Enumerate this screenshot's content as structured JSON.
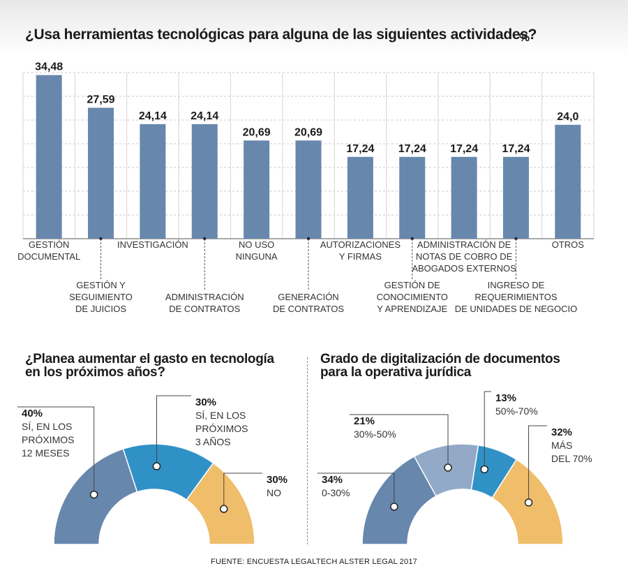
{
  "header": {
    "title": "¿Usa herramientas tecnológicas para alguna de las siguientes actividades?",
    "unit": "%"
  },
  "chart_data": [
    {
      "type": "bar",
      "title": "¿Usa herramientas tecnológicas para alguna de las siguientes actividades?",
      "unit": "%",
      "categories": [
        [
          "GESTIÓN",
          "DOCUMENTAL"
        ],
        [
          "GESTIÓN Y",
          "SEGUIMIENTO",
          "DE JUICIOS"
        ],
        [
          "INVESTIGACIÓN"
        ],
        [
          "ADMINISTRACIÓN",
          "DE CONTRATOS"
        ],
        [
          "NO USO",
          "NINGUNA"
        ],
        [
          "GENERACIÓN",
          "DE CONTRATOS"
        ],
        [
          "AUTORIZACIONES",
          "Y FIRMAS"
        ],
        [
          "GESTIÓN DE",
          "CONOCIMIENTO",
          "Y APRENDIZAJE"
        ],
        [
          "ADMINISTRACIÓN DE",
          "NOTAS DE COBRO DE",
          "ABOGADOS EXTERNOS"
        ],
        [
          "INGRESO DE",
          "REQUERIMIENTOS",
          "DE UNIDADES DE NEGOCIO"
        ],
        [
          "OTROS"
        ]
      ],
      "values": [
        34.48,
        27.59,
        24.14,
        24.14,
        20.69,
        20.69,
        17.24,
        17.24,
        17.24,
        17.24,
        24.0
      ],
      "value_labels": [
        "34,48",
        "27,59",
        "24,14",
        "24,14",
        "20,69",
        "20,69",
        "17,24",
        "17,24",
        "17,24",
        "17,24",
        "24,0"
      ],
      "ylim": [
        0,
        35
      ],
      "grid": true,
      "color": "#6887ad"
    },
    {
      "type": "pie",
      "title": "¿Planea aumentar el gasto en tecnología en los próximos años?",
      "title_lines": [
        "¿Planea aumentar el gasto en tecnología",
        "en los próximos años?"
      ],
      "slices": [
        {
          "value": 40,
          "pct_label": "40%",
          "label_lines": [
            "SÍ, EN LOS",
            "PRÓXIMOS",
            "12 MESES"
          ],
          "color": "#6887ad"
        },
        {
          "value": 30,
          "pct_label": "30%",
          "label_lines": [
            "SÍ, EN LOS",
            "PRÓXIMOS",
            "3 AÑOS"
          ],
          "color": "#2f91c6"
        },
        {
          "value": 30,
          "pct_label": "30%",
          "label_lines": [
            "NO"
          ],
          "color": "#f0bd6a"
        }
      ]
    },
    {
      "type": "pie",
      "title": "Grado de digitalización de documentos para la operativa jurídica",
      "title_lines": [
        "Grado de digitalización de documentos",
        "para la operativa jurídica"
      ],
      "slices": [
        {
          "value": 34,
          "pct_label": "34%",
          "label_lines": [
            "0-30%"
          ],
          "color": "#6887ad"
        },
        {
          "value": 21,
          "pct_label": "21%",
          "label_lines": [
            "30%-50%"
          ],
          "color": "#93a9c8"
        },
        {
          "value": 13,
          "pct_label": "13%",
          "label_lines": [
            "50%-70%"
          ],
          "color": "#2f91c6"
        },
        {
          "value": 32,
          "pct_label": "32%",
          "label_lines": [
            "MÁS",
            "DEL 70%"
          ],
          "color": "#f0bd6a"
        }
      ]
    }
  ],
  "footer": {
    "source": "FUENTE: ENCUESTA LEGALTECH ALSTER LEGAL 2017"
  }
}
